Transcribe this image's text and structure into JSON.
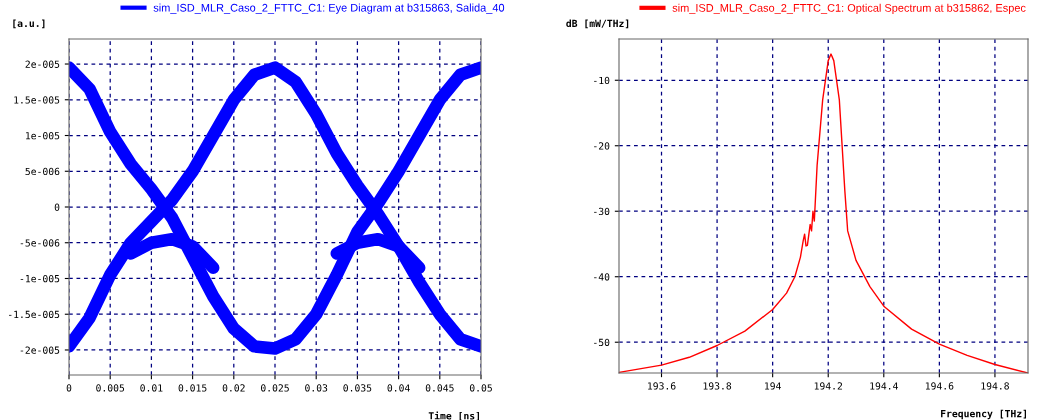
{
  "chart_data": [
    {
      "type": "line",
      "xlabel": "Time [ns]",
      "ylabel": "[a.u.]",
      "grid": true,
      "legend": "top",
      "xlim": [
        0,
        0.05
      ],
      "ylim": [
        -2.35e-05,
        2.35e-05
      ],
      "xticks": [
        0,
        0.005,
        0.01,
        0.015,
        0.02,
        0.025,
        0.03,
        0.035,
        0.04,
        0.045,
        0.05
      ],
      "yticks": [
        {
          "value": -2e-05,
          "label": "-2e-005"
        },
        {
          "value": -1.5e-05,
          "label": "-1.5e-005"
        },
        {
          "value": -1e-05,
          "label": "-1e-005"
        },
        {
          "value": -5e-06,
          "label": "-5e-006"
        },
        {
          "value": 0,
          "label": "0"
        },
        {
          "value": 5e-06,
          "label": "5e-006"
        },
        {
          "value": 1e-05,
          "label": "1e-005"
        },
        {
          "value": 1.5e-05,
          "label": "1.5e-005"
        },
        {
          "value": 2e-05,
          "label": "2e-005"
        }
      ],
      "series": [
        {
          "name": "sim_ISD_MLR_Caso_2_FTTC_C1: Eye Diagram at b315863, Salida_40",
          "color": "#0000ff",
          "x": [
            0,
            0.0025,
            0.005,
            0.0075,
            0.01,
            0.0125,
            0.015,
            0.0175,
            0.02,
            0.0225,
            0.025,
            0.0275,
            0.03,
            0.0325,
            0.035,
            0.0375,
            0.04,
            0.0425,
            0.045,
            0.0475,
            0.05
          ],
          "values": [
            1.95e-05,
            1.65e-05,
            1.05e-05,
            6e-06,
            2.5e-06,
            -1.5e-06,
            -7e-06,
            -1.25e-05,
            -1.7e-05,
            -1.95e-05,
            -1.98e-05,
            -1.85e-05,
            -1.5e-05,
            -9.5e-06,
            -3.5e-06,
            5e-07,
            5e-06,
            1e-05,
            1.5e-05,
            1.85e-05,
            1.95e-05
          ]
        },
        {
          "color": "#0000ff",
          "x": [
            0,
            0.0025,
            0.005,
            0.0075,
            0.01,
            0.0125,
            0.015,
            0.0175,
            0.02,
            0.0225,
            0.025,
            0.0275,
            0.03,
            0.0325,
            0.035,
            0.0375,
            0.04,
            0.0425,
            0.045,
            0.0475,
            0.05
          ],
          "values": [
            -1.95e-05,
            -1.55e-05,
            -9.5e-06,
            -5e-06,
            -2e-06,
            1e-06,
            5e-06,
            1e-05,
            1.5e-05,
            1.85e-05,
            1.95e-05,
            1.75e-05,
            1.3e-05,
            7.5e-06,
            3e-06,
            -1e-06,
            -5.5e-06,
            -1.05e-05,
            -1.5e-05,
            -1.85e-05,
            -1.95e-05
          ]
        },
        {
          "color": "#0000ff",
          "x": [
            0.0075,
            0.01,
            0.0125,
            0.015,
            0.0175,
            0.025,
            0.0325,
            0.035,
            0.0375,
            0.04,
            0.0425
          ],
          "values": [
            -6.5e-06,
            -5e-06,
            -4.5e-06,
            -5.5e-06,
            -8.5e-06,
            null,
            -6.5e-06,
            -5e-06,
            -4.5e-06,
            -5.5e-06,
            -8.5e-06
          ]
        }
      ]
    },
    {
      "type": "line",
      "xlabel": "Frequency [THz]",
      "ylabel": "dB [mW/THz]",
      "grid": true,
      "legend": "top",
      "xlim": [
        193.447,
        194.919
      ],
      "ylim": [
        -54.7,
        -3.7
      ],
      "xticks": [
        193.6,
        193.8,
        194,
        194.2,
        194.4,
        194.6,
        194.8
      ],
      "yticks": [
        -50,
        -40,
        -30,
        -20,
        -10
      ],
      "series": [
        {
          "name": "sim_ISD_MLR_Caso_2_FTTC_C1: Optical Spectrum at b315862, Espec",
          "color": "#ff0000",
          "x": [
            193.447,
            193.6,
            193.7,
            193.8,
            193.9,
            194.0,
            194.05,
            194.08,
            194.1,
            194.11,
            194.115,
            194.12,
            194.125,
            194.135,
            194.14,
            194.145,
            194.15,
            194.16,
            194.18,
            194.2,
            194.21,
            194.22,
            194.24,
            194.25,
            194.26,
            194.27,
            194.3,
            194.35,
            194.4,
            194.5,
            194.6,
            194.7,
            194.8,
            194.919
          ],
          "values": [
            -54.6,
            -53.5,
            -52.3,
            -50.5,
            -48.3,
            -45,
            -42.5,
            -40,
            -37,
            -34.5,
            -33.5,
            -35.3,
            -35.2,
            -32,
            -33,
            -30,
            -31.5,
            -23,
            -13,
            -7,
            -6,
            -7,
            -13,
            -20,
            -27,
            -33,
            -37.5,
            -41.5,
            -44.5,
            -48,
            -50.3,
            -52,
            -53.4,
            -54.7
          ]
        }
      ]
    }
  ]
}
